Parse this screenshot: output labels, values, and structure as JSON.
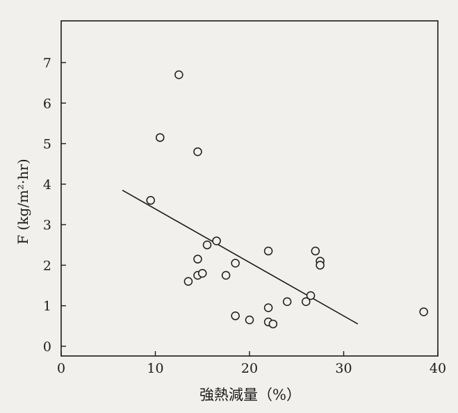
{
  "chart_data": {
    "type": "scatter",
    "xlabel": "強熱減量（%）",
    "ylabel": "F (kg/m²·hr)",
    "xlim": [
      0,
      40
    ],
    "ylim": [
      0,
      7.5
    ],
    "x_ticks": [
      "0",
      "10",
      "20",
      "30",
      "40"
    ],
    "y_ticks": [
      "0",
      "1",
      "2",
      "3",
      "4",
      "5",
      "6",
      "7"
    ],
    "grid": false,
    "series": [
      {
        "points": [
          [
            12.5,
            6.7
          ],
          [
            10.5,
            5.15
          ],
          [
            14.5,
            4.8
          ],
          [
            9.5,
            3.6
          ],
          [
            16.5,
            2.6
          ],
          [
            15.5,
            2.5
          ],
          [
            14.5,
            2.15
          ],
          [
            14.5,
            1.75
          ],
          [
            15.0,
            1.8
          ],
          [
            17.5,
            1.75
          ],
          [
            13.5,
            1.6
          ],
          [
            18.5,
            2.05
          ],
          [
            22.0,
            2.35
          ],
          [
            27.0,
            2.35
          ],
          [
            27.5,
            2.1
          ],
          [
            27.5,
            2.0
          ],
          [
            24.0,
            1.1
          ],
          [
            26.5,
            1.25
          ],
          [
            26.0,
            1.1
          ],
          [
            22.0,
            0.95
          ],
          [
            18.5,
            0.75
          ],
          [
            20.0,
            0.65
          ],
          [
            22.0,
            0.6
          ],
          [
            22.5,
            0.55
          ],
          [
            38.5,
            0.85
          ]
        ]
      }
    ],
    "trend_line": {
      "x": [
        6.5,
        31.5
      ],
      "y": [
        3.85,
        0.55
      ]
    }
  }
}
